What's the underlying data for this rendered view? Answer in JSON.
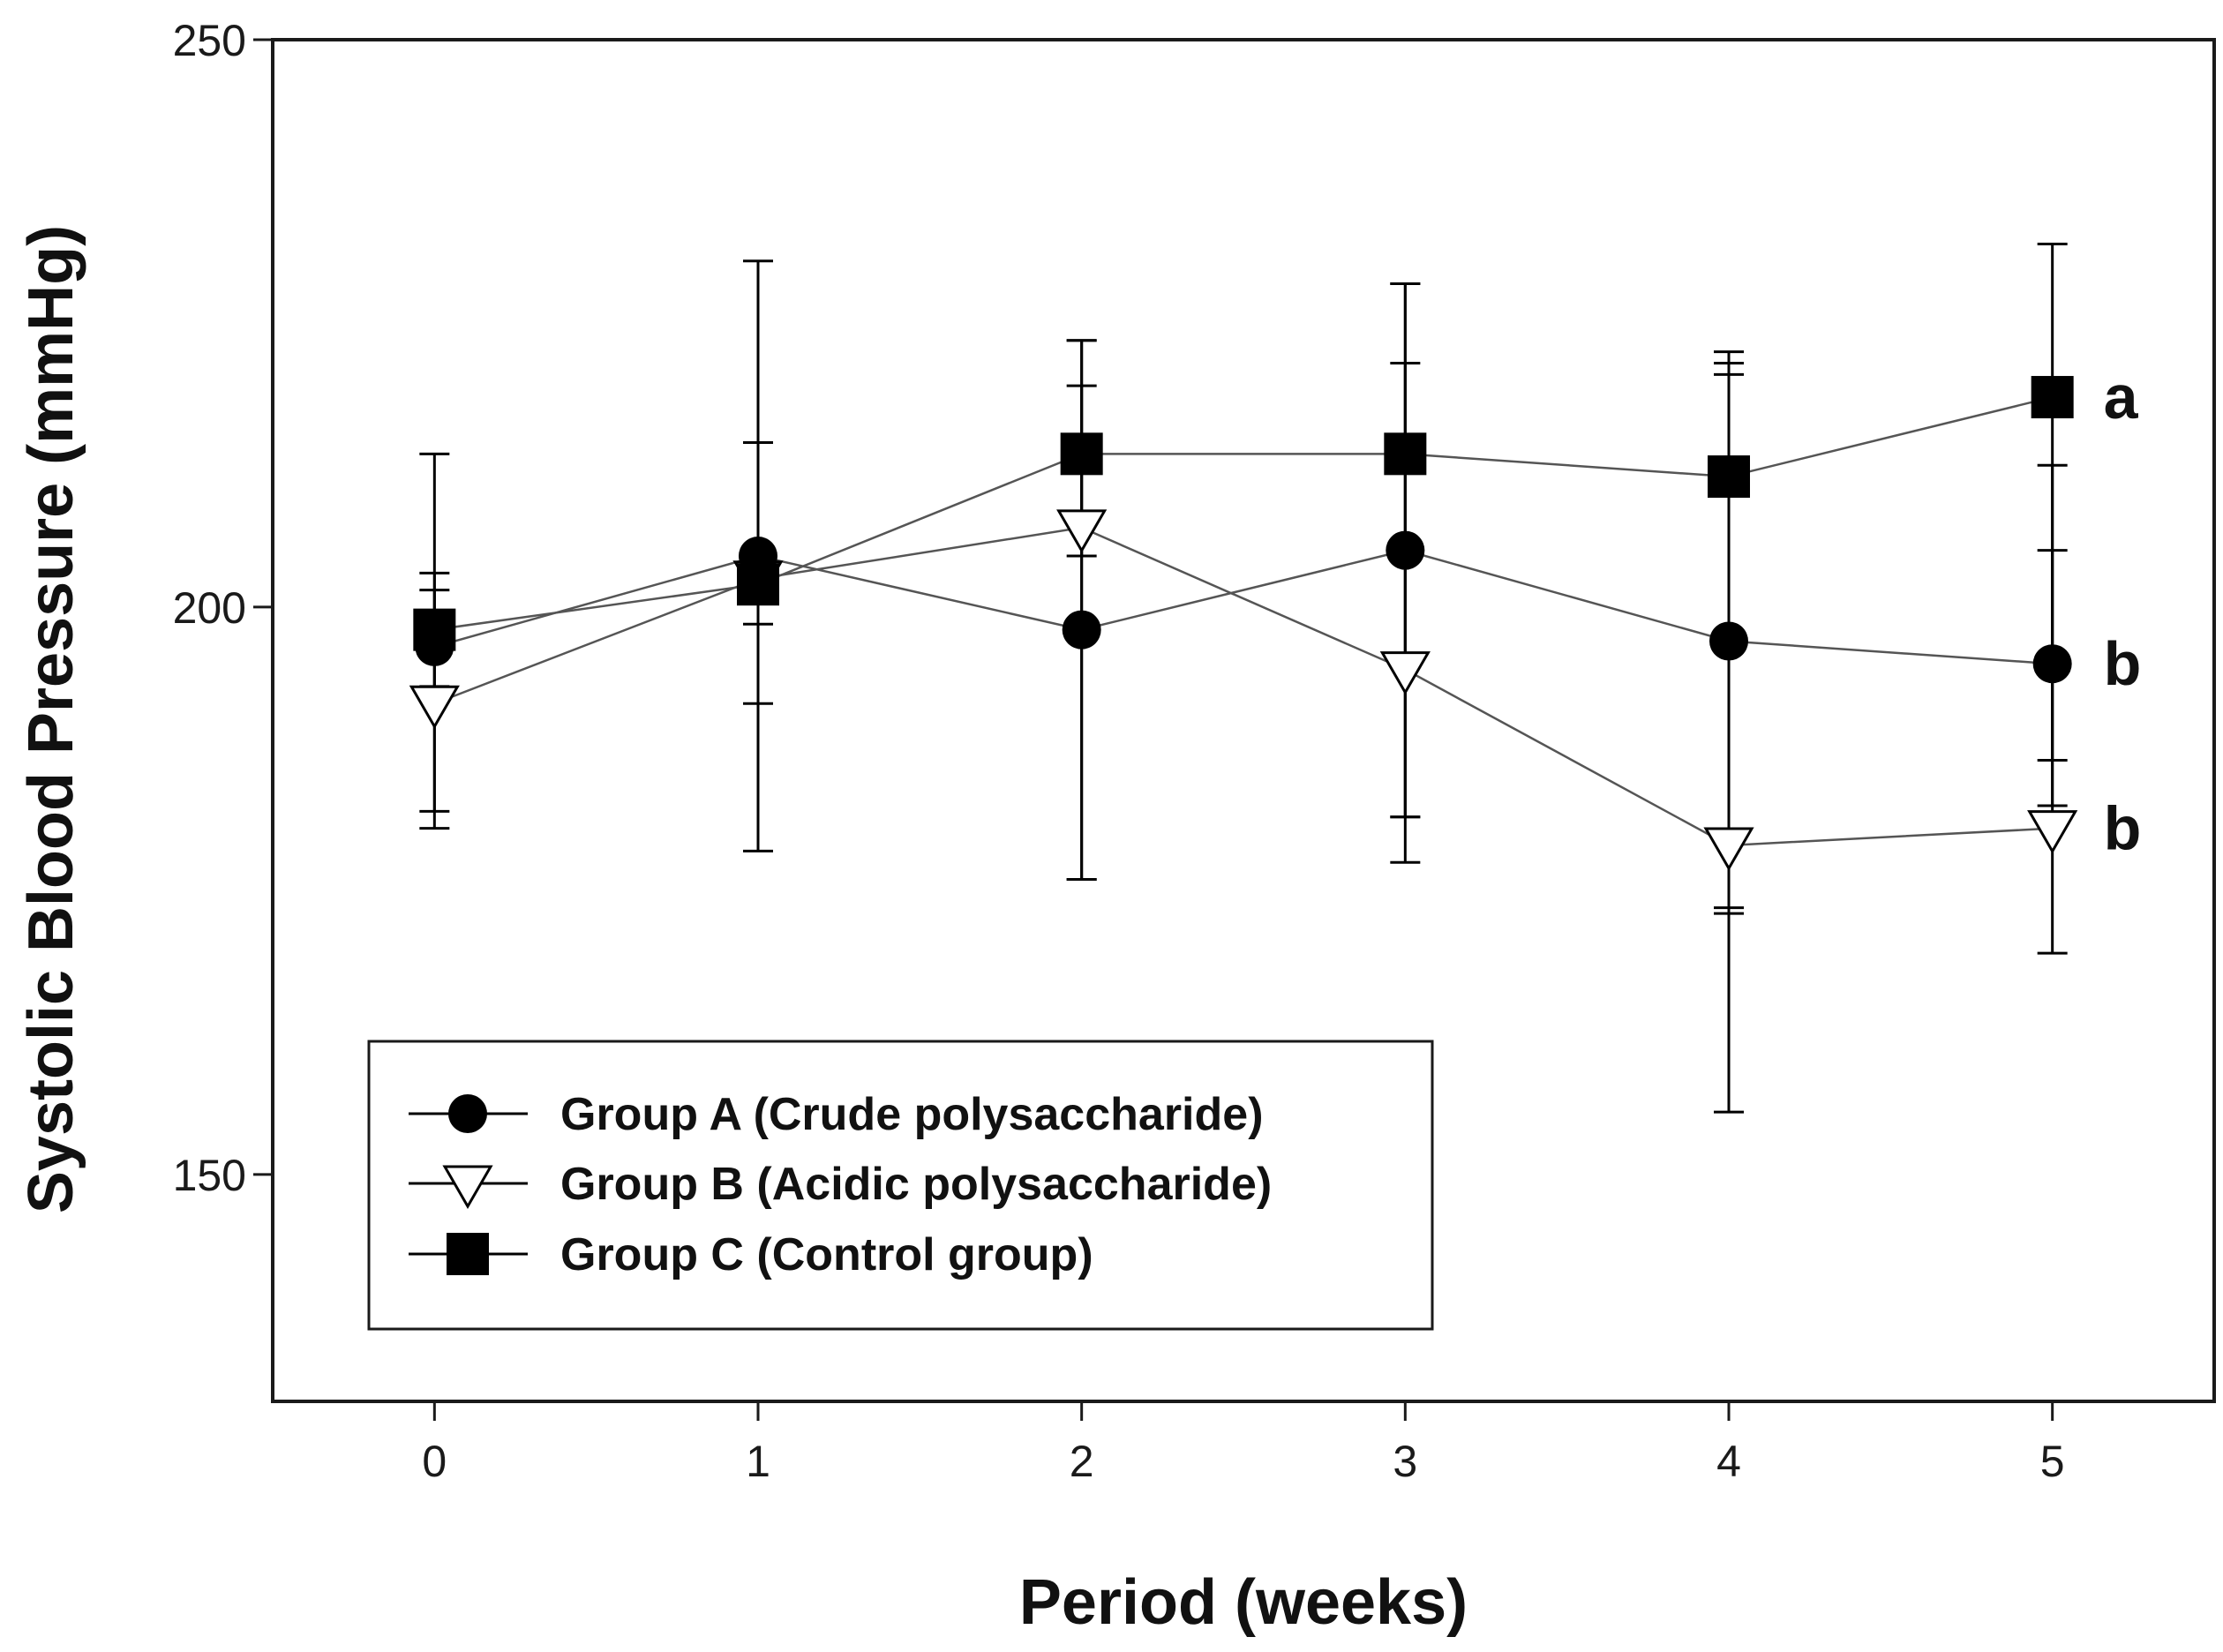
{
  "chart_data": {
    "type": "line",
    "title": "",
    "xlabel": "Period (weeks)",
    "ylabel": "Systolic Blood Pressure (mmHg)",
    "xlim": [
      -0.5,
      5.5
    ],
    "ylim": [
      130,
      250
    ],
    "x_ticks": [
      "0",
      "1",
      "2",
      "3",
      "4",
      "5"
    ],
    "y_ticks": [
      "150",
      "200",
      "250"
    ],
    "grid": false,
    "legend_position": "bottom-left",
    "x": [
      0,
      1,
      2,
      3,
      4,
      5
    ],
    "series": [
      {
        "name": "Group A (Crude polysaccharide)",
        "marker": "filled-circle",
        "values": [
          196.5,
          204.5,
          198,
          205,
          197,
          195
        ],
        "err_upper": [
          203,
          214.5,
          219.5,
          221.5,
          221.5,
          205
        ],
        "err_lower": [
          193,
          191.5,
          176,
          181.5,
          173,
          186.5
        ]
      },
      {
        "name": "Group B (Acidic polysaccharide)",
        "marker": "open-triangle-down",
        "values": [
          191.5,
          202.5,
          207,
          194.5,
          179,
          180.5
        ],
        "err_upper": [
          201.5,
          214.5,
          223.5,
          228.5,
          220.5,
          212.5
        ],
        "err_lower": [
          180.5,
          178.5,
          176,
          177.5,
          173.5,
          169.5
        ]
      },
      {
        "name": "Group C (Control group)",
        "marker": "filled-square",
        "values": [
          198,
          202,
          213.5,
          213.5,
          211.5,
          218.5
        ],
        "err_upper": [
          213.5,
          230.5,
          223.5,
          228.5,
          222.5,
          232
        ],
        "err_lower": [
          182,
          198.5,
          204.5,
          181.5,
          155.5,
          182.5
        ]
      }
    ],
    "annotations": [
      {
        "text": "a",
        "x": 5,
        "y": 218.5
      },
      {
        "text": "b",
        "x": 5,
        "y": 195
      },
      {
        "text": "b",
        "x": 5,
        "y": 180.5
      }
    ]
  }
}
